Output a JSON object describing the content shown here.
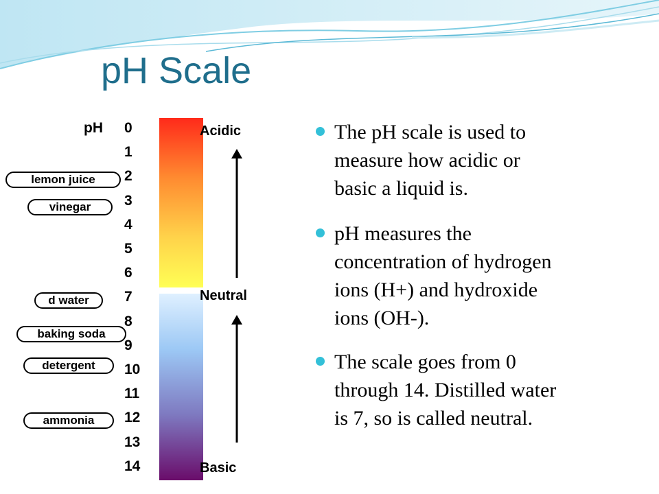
{
  "title": "pH Scale",
  "scale": {
    "label": "pH",
    "values": [
      0,
      1,
      2,
      3,
      4,
      5,
      6,
      7,
      8,
      9,
      10,
      11,
      12,
      13,
      14
    ],
    "sides": [
      "Acidic",
      "Neutral",
      "Basic"
    ]
  },
  "substances": [
    "lemon juice",
    "vinegar",
    "d water",
    "baking soda",
    "detergent",
    "ammonia"
  ],
  "bullets": [
    {
      "lines": [
        "The pH scale is used to",
        "measure how acidic or",
        "basic a liquid is."
      ]
    },
    {
      "lines": [
        "pH measures the",
        "concentration of hydrogen",
        "ions (H+) and hydroxide",
        "ions (OH-)."
      ]
    },
    {
      "lines": [
        "The scale goes from 0",
        "through 14. Distilled water",
        "is 7, so is called neutral."
      ]
    }
  ]
}
